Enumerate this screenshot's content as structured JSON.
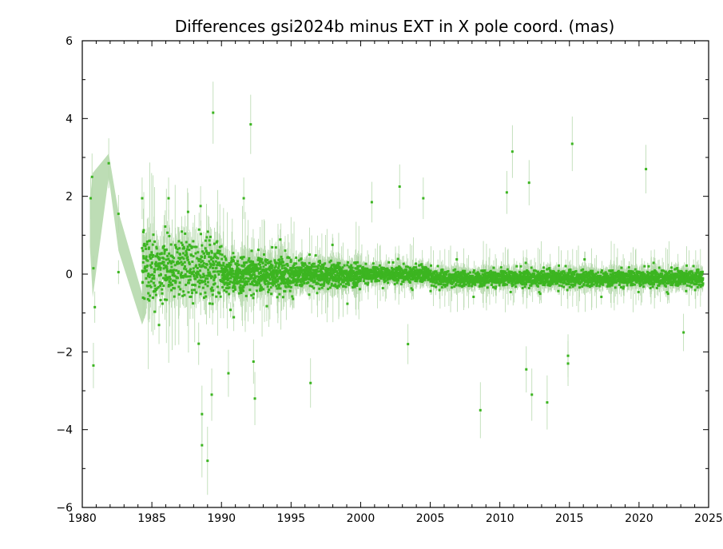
{
  "chart_data": {
    "type": "scatter",
    "title": "Differences gsi2024b minus EXT in X pole coord. (mas)",
    "xlabel": "",
    "ylabel": "",
    "xlim": [
      1980,
      2025
    ],
    "ylim": [
      -6,
      6
    ],
    "x_ticks": [
      1980,
      1985,
      1990,
      1995,
      2000,
      2005,
      2010,
      2015,
      2020,
      2025
    ],
    "y_ticks": [
      -6,
      -4,
      -2,
      0,
      2,
      4,
      6
    ],
    "x_tick_labels": [
      "1980",
      "1985",
      "1990",
      "1995",
      "2000",
      "2005",
      "2010",
      "2015",
      "2020",
      "2025"
    ],
    "y_tick_labels": [
      "−6",
      "−4",
      "−2",
      "0",
      "2",
      "4",
      "6"
    ],
    "grid": false,
    "colors": {
      "points": "#3cb521",
      "errorbars": "#b6d9ad",
      "axes": "#000000"
    },
    "notable_points": [
      {
        "x": 1980.6,
        "y": 1.95
      },
      {
        "x": 1980.7,
        "y": 2.5
      },
      {
        "x": 1980.8,
        "y": -2.35
      },
      {
        "x": 1980.8,
        "y": 0.15
      },
      {
        "x": 1980.9,
        "y": -0.85
      },
      {
        "x": 1981.9,
        "y": 2.85
      },
      {
        "x": 1982.6,
        "y": 1.55
      },
      {
        "x": 1982.6,
        "y": 0.05
      },
      {
        "x": 1984.3,
        "y": 1.95
      },
      {
        "x": 1986.2,
        "y": 1.95
      },
      {
        "x": 1987.6,
        "y": 1.6
      },
      {
        "x": 1988.5,
        "y": 1.75
      },
      {
        "x": 1988.6,
        "y": -3.6
      },
      {
        "x": 1988.6,
        "y": -4.4
      },
      {
        "x": 1989.0,
        "y": -4.8
      },
      {
        "x": 1989.4,
        "y": 4.15
      },
      {
        "x": 1989.3,
        "y": -3.1
      },
      {
        "x": 1990.5,
        "y": -2.55
      },
      {
        "x": 1991.6,
        "y": 1.95
      },
      {
        "x": 1992.1,
        "y": 3.85
      },
      {
        "x": 1992.4,
        "y": -3.2
      },
      {
        "x": 1992.3,
        "y": -2.25
      },
      {
        "x": 1996.4,
        "y": -2.8
      },
      {
        "x": 2000.8,
        "y": 1.85
      },
      {
        "x": 2002.8,
        "y": 2.25
      },
      {
        "x": 2003.4,
        "y": -1.8
      },
      {
        "x": 2004.5,
        "y": 1.95
      },
      {
        "x": 2008.6,
        "y": -3.5
      },
      {
        "x": 2010.5,
        "y": 2.1
      },
      {
        "x": 2010.9,
        "y": 3.15
      },
      {
        "x": 2011.9,
        "y": -2.45
      },
      {
        "x": 2012.1,
        "y": 2.35
      },
      {
        "x": 2012.3,
        "y": -3.1
      },
      {
        "x": 2013.4,
        "y": -3.3
      },
      {
        "x": 2014.9,
        "y": -2.1
      },
      {
        "x": 2014.9,
        "y": -2.3
      },
      {
        "x": 2015.2,
        "y": 3.35
      },
      {
        "x": 2020.5,
        "y": 2.7
      },
      {
        "x": 2023.2,
        "y": -1.5
      }
    ],
    "series_note": "Dense cloud of several thousand points centred on 0: spread about ±1.2 mas before 1990, about ±0.5 mas 1990–2000, about ±0.3 mas after 2000; sparse large errorbars before 1985."
  }
}
